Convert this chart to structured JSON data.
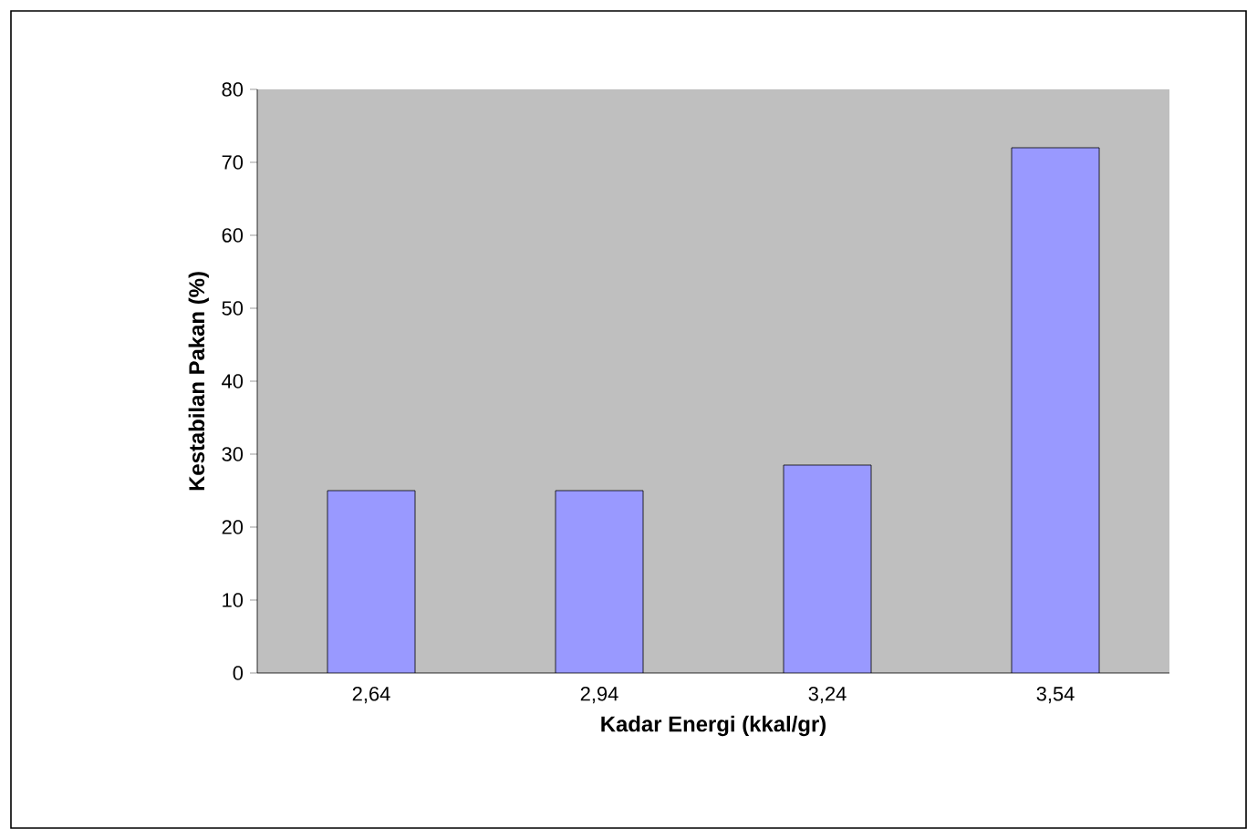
{
  "chart_data": {
    "type": "bar",
    "xlabel": "Kadar Energi (kkal/gr)",
    "ylabel": "Kestabilan Pakan (%)",
    "categories": [
      "2,64",
      "2,94",
      "3,24",
      "3,54"
    ],
    "values": [
      25,
      25,
      28.5,
      72
    ],
    "color": "#9999ff",
    "ylim": [
      0,
      80
    ],
    "yticks": [
      0,
      10,
      20,
      30,
      40,
      50,
      60,
      70,
      80
    ]
  }
}
